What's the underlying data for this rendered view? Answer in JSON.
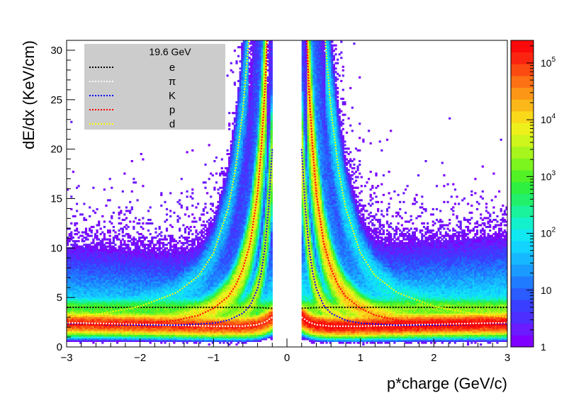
{
  "chart_data": {
    "type": "heatmap",
    "title": "",
    "xlabel": "p*charge (GeV/c)",
    "ylabel": "dE/dx (KeV/cm)",
    "xlim": [
      -3,
      3
    ],
    "ylim": [
      0,
      31
    ],
    "x_ticks": [
      -3,
      -2,
      -1,
      0,
      1,
      2,
      3
    ],
    "y_ticks": [
      0,
      5,
      10,
      15,
      20,
      25,
      30
    ],
    "x_tick_labels": [
      "−3",
      "−2",
      "−1",
      "0",
      "1",
      "2",
      "3"
    ],
    "y_tick_labels": [
      "0",
      "5",
      "10",
      "15",
      "20",
      "25",
      "30"
    ],
    "colorbar": {
      "scale": "log",
      "range": [
        1,
        250000
      ],
      "tick_labels": [
        {
          "value": 1,
          "text": "1"
        },
        {
          "value": 10,
          "text": "10"
        },
        {
          "value": 100,
          "text": "10",
          "sup": "2"
        },
        {
          "value": 1000,
          "text": "10",
          "sup": "3"
        },
        {
          "value": 10000,
          "text": "10",
          "sup": "4"
        },
        {
          "value": 100000,
          "text": "10",
          "sup": "5"
        }
      ],
      "colors": [
        "#7f00ff",
        "#6a1bff",
        "#4d2fff",
        "#3a3fff",
        "#2a5cff",
        "#1f7bff",
        "#1a9bff",
        "#16b9ff",
        "#12d4ff",
        "#10e8f2",
        "#12f0cc",
        "#1af29c",
        "#22f06a",
        "#2ef040",
        "#52f226",
        "#7cf41e",
        "#a6f51c",
        "#cef51c",
        "#eef01c",
        "#fad91a",
        "#fbb818",
        "#fb9616",
        "#fb7114",
        "#fb4a12",
        "#fb2410",
        "#fa0a0a"
      ]
    },
    "legend": {
      "title": "19.6 GeV",
      "placement": "top-left",
      "entries": [
        {
          "label": "e",
          "color": "#000000"
        },
        {
          "label": "π",
          "color": "#ffffff"
        },
        {
          "label": "K",
          "color": "#0000ff"
        },
        {
          "label": "p",
          "color": "#ff0000"
        },
        {
          "label": "d",
          "color": "#ffff00"
        }
      ]
    },
    "series": [
      {
        "species": "e",
        "color": "#000000",
        "x": [
          0.2,
          0.3,
          0.5,
          1,
          2,
          3
        ],
        "y": [
          3.9,
          3.95,
          4.0,
          4.0,
          4.0,
          4.0
        ]
      },
      {
        "species": "π",
        "color": "#ffffff",
        "x": [
          0.2,
          0.3,
          0.4,
          0.6,
          1.0,
          2.0,
          3.0
        ],
        "y": [
          3.0,
          2.5,
          2.25,
          2.1,
          2.1,
          2.3,
          2.45
        ]
      },
      {
        "species": "K",
        "color": "#0000ff",
        "x": [
          0.2,
          0.25,
          0.3,
          0.35,
          0.4,
          0.5,
          0.6,
          0.8,
          1.0,
          1.5,
          2.0,
          3.0
        ],
        "y": [
          20,
          14,
          10,
          7.5,
          5.9,
          4.2,
          3.4,
          2.7,
          2.4,
          2.2,
          2.2,
          2.3
        ]
      },
      {
        "species": "p",
        "color": "#ff0000",
        "x": [
          0.27,
          0.3,
          0.35,
          0.4,
          0.5,
          0.6,
          0.7,
          0.8,
          1.0,
          1.2,
          1.5,
          2.0,
          3.0
        ],
        "y": [
          31,
          26,
          20,
          15.5,
          10.5,
          7.9,
          6.2,
          5.1,
          3.9,
          3.2,
          2.7,
          2.35,
          2.2
        ]
      },
      {
        "species": "d",
        "color": "#ffff00",
        "x": [
          0.52,
          0.6,
          0.7,
          0.8,
          1.0,
          1.2,
          1.5,
          2.0,
          2.5,
          3.0
        ],
        "y": [
          31,
          24,
          18,
          14,
          9.5,
          7.2,
          5.5,
          4.1,
          3.4,
          3.0
        ]
      }
    ]
  }
}
